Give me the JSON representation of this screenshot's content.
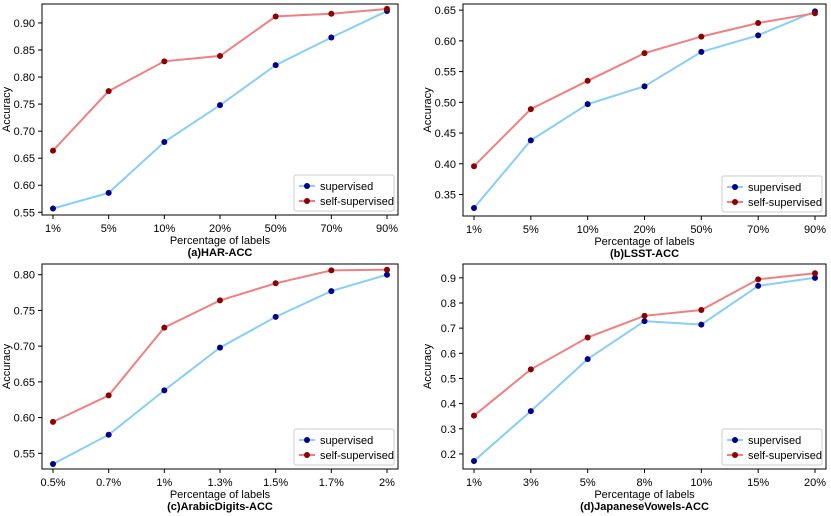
{
  "chart_data": [
    {
      "id": "har",
      "type": "line",
      "title": "(a)HAR-ACC",
      "xlabel": "Percentage of labels",
      "ylabel": "Accuracy",
      "categories": [
        "1%",
        "5%",
        "10%",
        "20%",
        "50%",
        "70%",
        "90%"
      ],
      "ylim": [
        0.545,
        0.935
      ],
      "yticks": [
        0.55,
        0.6,
        0.65,
        0.7,
        0.75,
        0.8,
        0.85,
        0.9
      ],
      "ytick_labels": [
        "0.55",
        "0.60",
        "0.65",
        "0.70",
        "0.75",
        "0.80",
        "0.85",
        "0.90"
      ],
      "legend": "bottom-right",
      "series": [
        {
          "name": "supervised",
          "values": [
            0.557,
            0.586,
            0.68,
            0.748,
            0.822,
            0.873,
            0.922
          ]
        },
        {
          "name": "self-supervised",
          "values": [
            0.664,
            0.774,
            0.829,
            0.839,
            0.912,
            0.917,
            0.926
          ]
        }
      ]
    },
    {
      "id": "lsst",
      "type": "line",
      "title": "(b)LSST-ACC",
      "xlabel": "Percentage of labels",
      "ylabel": "Accuracy",
      "categories": [
        "1%",
        "5%",
        "10%",
        "20%",
        "50%",
        "70%",
        "90%"
      ],
      "ylim": [
        0.315,
        0.66
      ],
      "yticks": [
        0.35,
        0.4,
        0.45,
        0.5,
        0.55,
        0.6,
        0.65
      ],
      "ytick_labels": [
        "0.35",
        "0.40",
        "0.45",
        "0.50",
        "0.55",
        "0.60",
        "0.65"
      ],
      "legend": "bottom-right",
      "series": [
        {
          "name": "supervised",
          "values": [
            0.328,
            0.438,
            0.497,
            0.526,
            0.582,
            0.609,
            0.648
          ]
        },
        {
          "name": "self-supervised",
          "values": [
            0.396,
            0.489,
            0.535,
            0.58,
            0.607,
            0.629,
            0.645
          ]
        }
      ]
    },
    {
      "id": "arabic",
      "type": "line",
      "title": "(c)ArabicDigits-ACC",
      "xlabel": "Percentage of labels",
      "ylabel": "Accuracy",
      "categories": [
        "0.5%",
        "0.7%",
        "1%",
        "1.3%",
        "1.5%",
        "1.7%",
        "2%"
      ],
      "ylim": [
        0.528,
        0.815
      ],
      "yticks": [
        0.55,
        0.6,
        0.65,
        0.7,
        0.75,
        0.8
      ],
      "ytick_labels": [
        "0.55",
        "0.60",
        "0.65",
        "0.70",
        "0.75",
        "0.80"
      ],
      "legend": "bottom-right",
      "series": [
        {
          "name": "supervised",
          "values": [
            0.535,
            0.576,
            0.638,
            0.698,
            0.741,
            0.777,
            0.8
          ]
        },
        {
          "name": "self-supervised",
          "values": [
            0.594,
            0.631,
            0.726,
            0.764,
            0.788,
            0.806,
            0.807
          ]
        }
      ]
    },
    {
      "id": "jpvow",
      "type": "line",
      "title": "(d)JapaneseVowels-ACC",
      "xlabel": "Percentage of labels",
      "ylabel": "Accuracy",
      "categories": [
        "1%",
        "3%",
        "5%",
        "8%",
        "10%",
        "15%",
        "20%"
      ],
      "ylim": [
        0.14,
        0.955
      ],
      "yticks": [
        0.2,
        0.3,
        0.4,
        0.5,
        0.6,
        0.7,
        0.8,
        0.9
      ],
      "ytick_labels": [
        "0.2",
        "0.3",
        "0.4",
        "0.5",
        "0.6",
        "0.7",
        "0.8",
        "0.9"
      ],
      "legend": "bottom-right",
      "series": [
        {
          "name": "supervised",
          "values": [
            0.172,
            0.37,
            0.577,
            0.728,
            0.714,
            0.868,
            0.9
          ]
        },
        {
          "name": "self-supervised",
          "values": [
            0.352,
            0.536,
            0.663,
            0.749,
            0.772,
            0.894,
            0.918
          ]
        }
      ]
    }
  ],
  "style": {
    "supervised_line": "#87cefa",
    "supervised_marker": "#00008b",
    "self_supervised_line": "#f08080",
    "self_supervised_marker": "#8b0000"
  }
}
